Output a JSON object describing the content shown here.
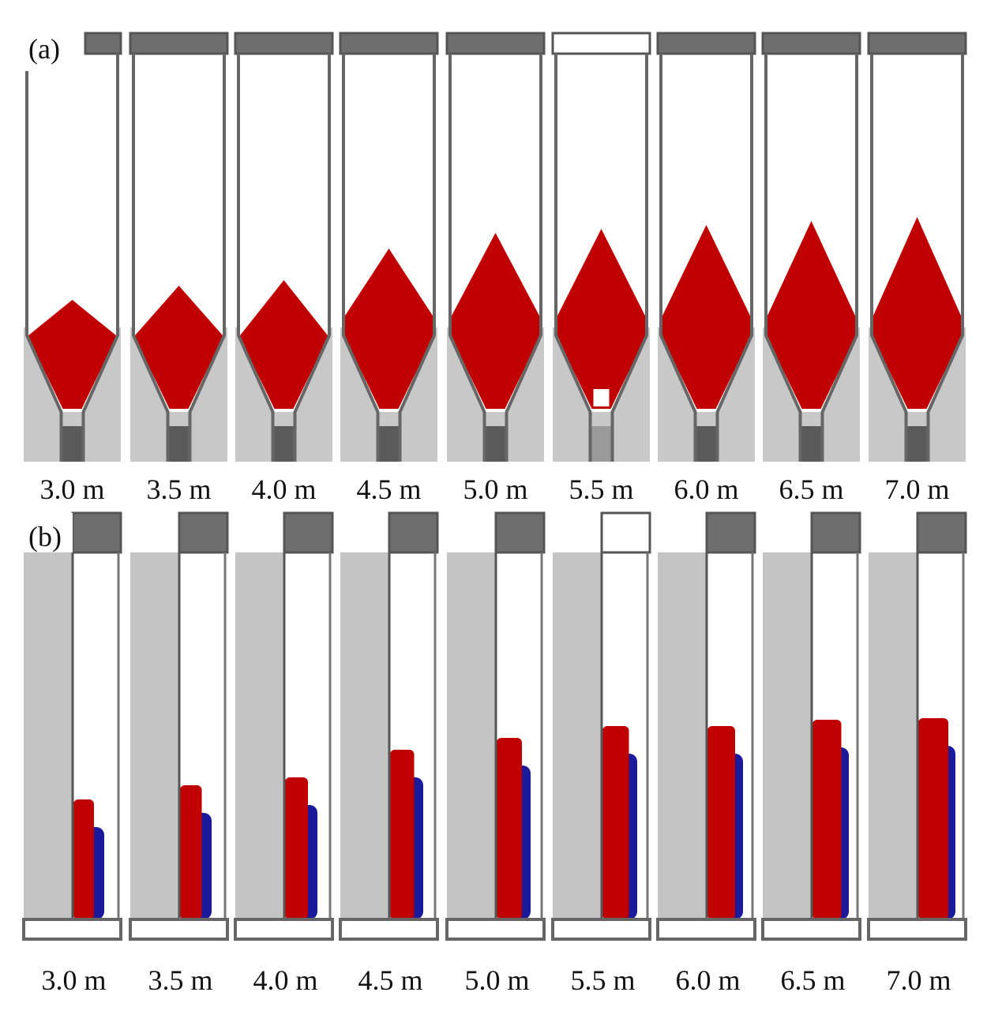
{
  "panels": [
    {
      "label": "(a)",
      "captions": [
        "3.0 m",
        "3.5 m",
        "4.0 m",
        "4.5 m",
        "5.0 m",
        "5.5 m",
        "6.0 m",
        "6.5 m",
        "7.0 m"
      ]
    },
    {
      "label": "(b)",
      "captions": [
        "3.0 m",
        "3.5 m",
        "4.0 m",
        "4.5 m",
        "5.0 m",
        "5.5 m",
        "6.0 m",
        "6.5 m",
        "7.0 m"
      ]
    }
  ]
}
